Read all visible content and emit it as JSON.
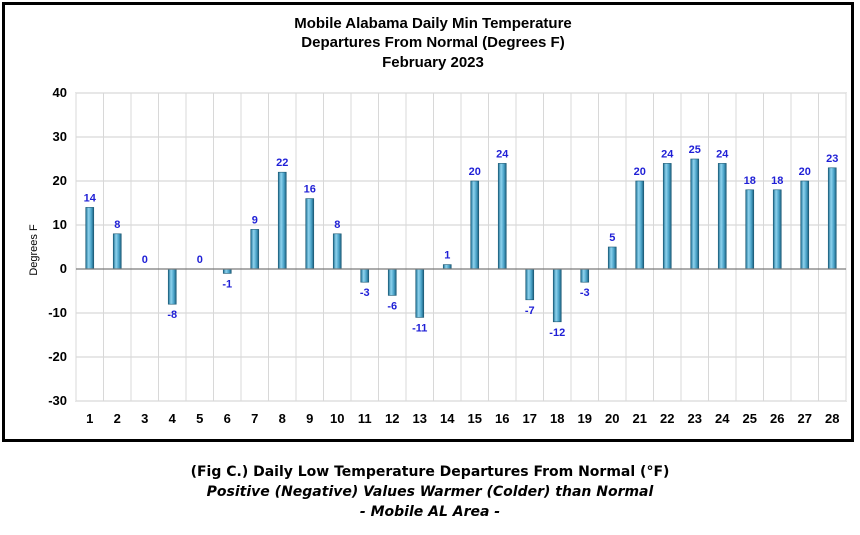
{
  "chart_data": {
    "type": "bar",
    "title_lines": [
      "Mobile Alabama Daily Min Temperature",
      "Departures From Normal (Degrees F)",
      "February 2023"
    ],
    "xlabel": "",
    "ylabel": "Degrees F",
    "ylim": [
      -30,
      40
    ],
    "yticks": [
      "40",
      "30",
      "20",
      "10",
      "0",
      "-10",
      "-20",
      "-30"
    ],
    "grid": true,
    "legend": "none",
    "categories": [
      "1",
      "2",
      "3",
      "4",
      "5",
      "6",
      "7",
      "8",
      "9",
      "10",
      "11",
      "12",
      "13",
      "14",
      "15",
      "16",
      "17",
      "18",
      "19",
      "20",
      "21",
      "22",
      "23",
      "24",
      "25",
      "26",
      "27",
      "28"
    ],
    "values": [
      14,
      8,
      0,
      -8,
      0,
      -1,
      9,
      22,
      16,
      8,
      -3,
      -6,
      -11,
      1,
      20,
      24,
      -7,
      -12,
      -3,
      5,
      20,
      24,
      25,
      24,
      18,
      18,
      20,
      23
    ],
    "data_labels": [
      "14",
      "8",
      "0",
      "-8",
      "0",
      "-1",
      "9",
      "22",
      "16",
      "8",
      "-3",
      "-6",
      "-11",
      "1",
      "20",
      "24",
      "-7",
      "-12",
      "-3",
      "5",
      "20",
      "24",
      "25",
      "24",
      "18",
      "18",
      "20",
      "23"
    ],
    "bar_color": "#4aa3c8",
    "label_color": "#1f1fd6"
  },
  "caption": {
    "line1": "(Fig C.) Daily Low Temperature Departures From Normal (°F)",
    "line2": "Positive (Negative) Values Warmer (Colder) than Normal",
    "line3": "- Mobile AL Area -"
  }
}
